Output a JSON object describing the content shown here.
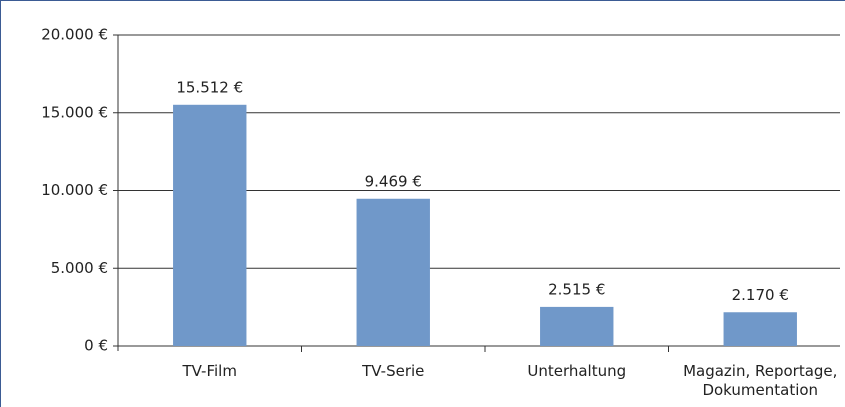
{
  "chart_data": {
    "type": "bar",
    "categories": [
      "TV-Film",
      "TV-Serie",
      "Unterhaltung",
      "Magazin, Reportage, Dokumentation"
    ],
    "values": [
      15512,
      9469,
      2515,
      2170
    ],
    "value_labels": [
      "15.512 €",
      "9.469 €",
      "2.515 €",
      "2.170 €"
    ],
    "color": "#7098c9",
    "ylim": [
      0,
      20000
    ],
    "yticks": [
      {
        "value": 0,
        "label": "0 €"
      },
      {
        "value": 5000,
        "label": "5.000 €"
      },
      {
        "value": 10000,
        "label": "10.000 €"
      },
      {
        "value": 15000,
        "label": "15.000 €"
      },
      {
        "value": 20000,
        "label": "20.000 €"
      }
    ],
    "grid": true
  }
}
